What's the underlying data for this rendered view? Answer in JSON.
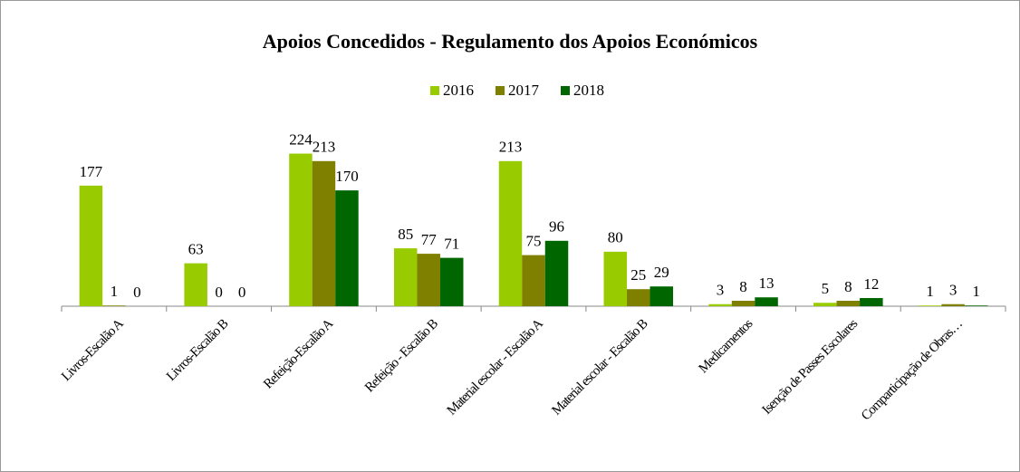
{
  "chart_data": {
    "type": "bar",
    "title": "Apoios Concedidos - Regulamento dos Apoios Económicos",
    "categories": [
      "Livros-Escalão A",
      "Livros-Escalão B",
      "Refeição-Escalão A",
      "Refeição - Escalão B",
      "Material escolar - Escalão A",
      "Material escolar - Escalão B",
      "Medicamentos",
      "Isenção de Passes Escolares",
      "Comparticipação de Obras…"
    ],
    "series": [
      {
        "name": "2016",
        "color": "#99cc00",
        "values": [
          177,
          63,
          224,
          85,
          213,
          80,
          3,
          5,
          1
        ]
      },
      {
        "name": "2017",
        "color": "#808000",
        "values": [
          1,
          0,
          213,
          77,
          75,
          25,
          8,
          8,
          3
        ]
      },
      {
        "name": "2018",
        "color": "#006600",
        "values": [
          0,
          0,
          170,
          71,
          96,
          29,
          13,
          12,
          1
        ]
      }
    ],
    "ylim": [
      0,
      250
    ],
    "legend": "top"
  }
}
